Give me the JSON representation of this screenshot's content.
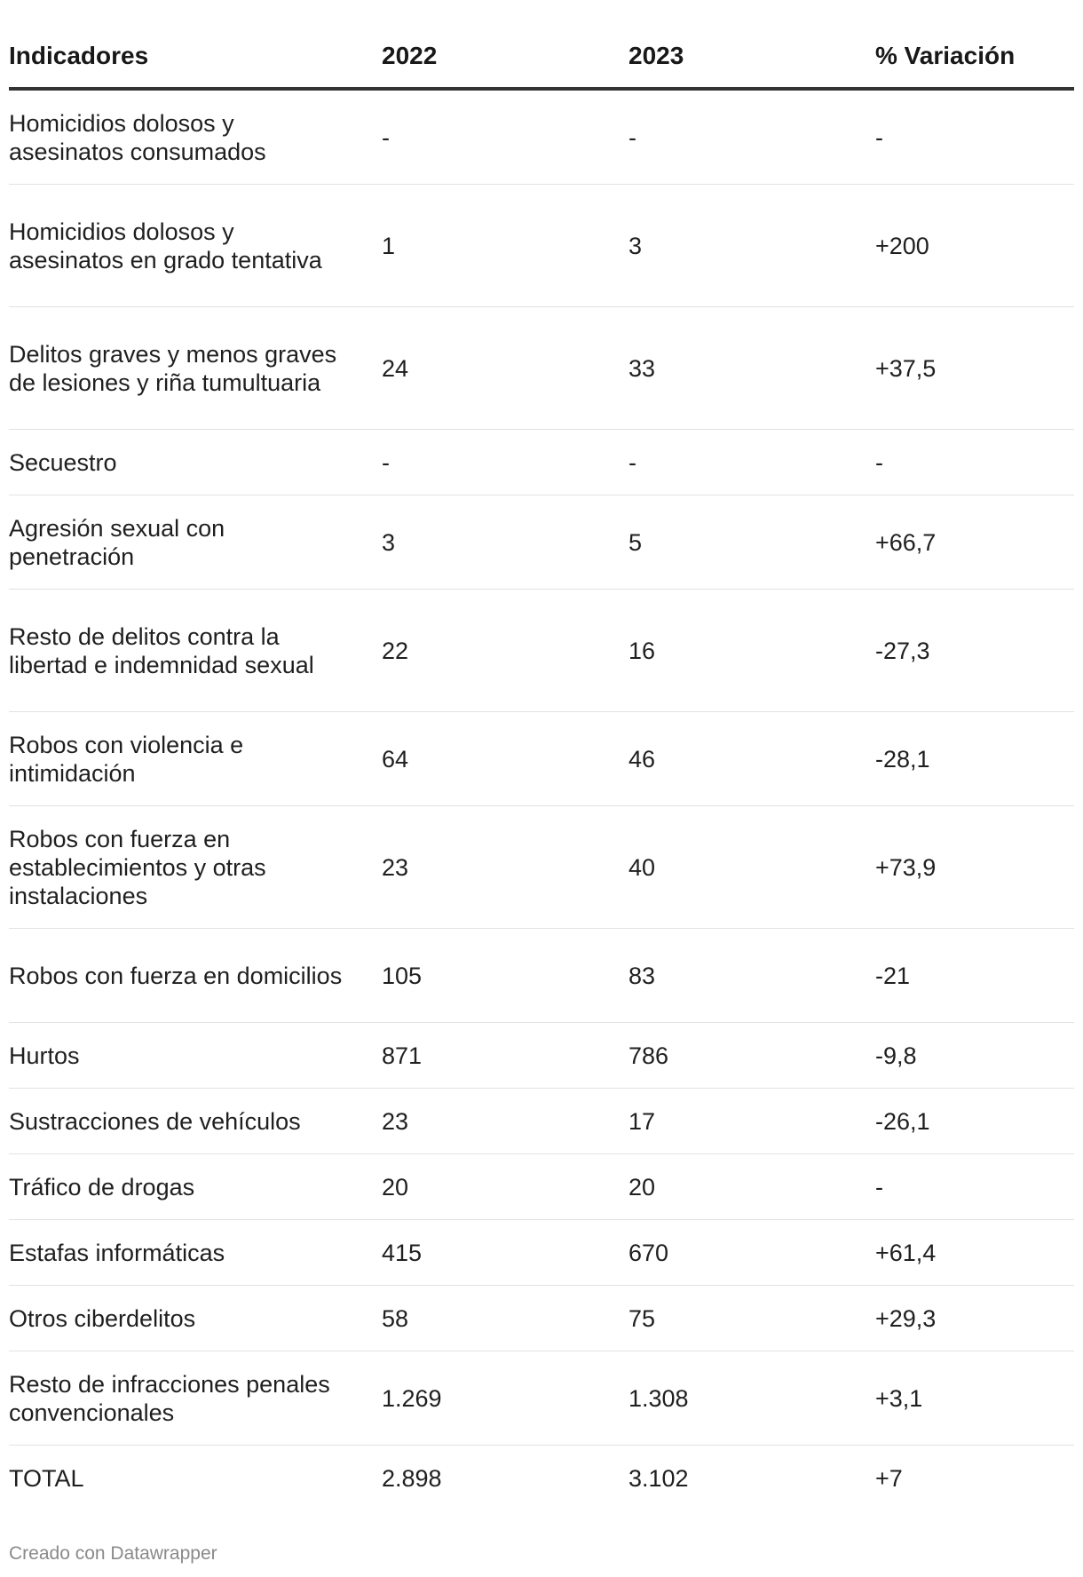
{
  "table": {
    "headers": [
      "Indicadores",
      "2022",
      "2023",
      "% Variación"
    ],
    "rows": [
      {
        "label": "Homicidios dolosos y asesinatos consumados",
        "y2022": "-",
        "y2023": "-",
        "variation": "-"
      },
      {
        "label": "Homicidios dolosos y asesinatos en grado tentativa",
        "y2022": "1",
        "y2023": "3",
        "variation": "+200"
      },
      {
        "label": "Delitos graves y menos graves de lesiones y riña tumultuaria",
        "y2022": "24",
        "y2023": "33",
        "variation": "+37,5"
      },
      {
        "label": "Secuestro",
        "y2022": "-",
        "y2023": "-",
        "variation": "-"
      },
      {
        "label": "Agresión sexual con penetración",
        "y2022": "3",
        "y2023": "5",
        "variation": "+66,7"
      },
      {
        "label": "Resto de delitos contra la libertad e indemnidad sexual",
        "y2022": "22",
        "y2023": "16",
        "variation": "-27,3"
      },
      {
        "label": "Robos con violencia e intimidación",
        "y2022": "64",
        "y2023": "46",
        "variation": "-28,1"
      },
      {
        "label": "Robos con fuerza en establecimientos y otras instalaciones",
        "y2022": "23",
        "y2023": "40",
        "variation": "+73,9"
      },
      {
        "label": "Robos con fuerza en domicilios",
        "y2022": "105",
        "y2023": "83",
        "variation": "-21"
      },
      {
        "label": "Hurtos",
        "y2022": "871",
        "y2023": "786",
        "variation": "-9,8"
      },
      {
        "label": "Sustracciones de vehículos",
        "y2022": "23",
        "y2023": "17",
        "variation": "-26,1"
      },
      {
        "label": "Tráfico de drogas",
        "y2022": "20",
        "y2023": "20",
        "variation": "-"
      },
      {
        "label": "Estafas informáticas",
        "y2022": "415",
        "y2023": "670",
        "variation": "+61,4"
      },
      {
        "label": "Otros ciberdelitos",
        "y2022": "58",
        "y2023": "75",
        "variation": "+29,3"
      },
      {
        "label": "Resto de infracciones penales convencionales",
        "y2022": "1.269",
        "y2023": "1.308",
        "variation": "+3,1"
      },
      {
        "label": "TOTAL",
        "y2022": "2.898",
        "y2023": "3.102",
        "variation": "+7"
      }
    ]
  },
  "footer": {
    "credit": "Creado con Datawrapper"
  }
}
